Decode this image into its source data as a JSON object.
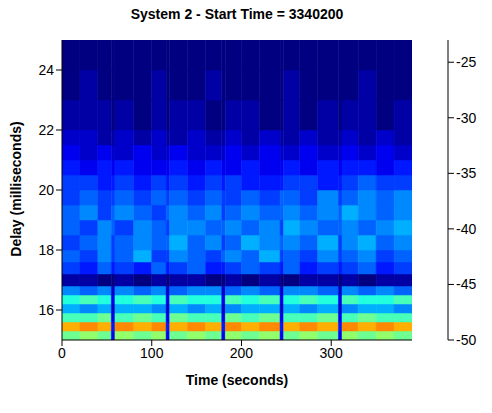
{
  "chart_data": {
    "type": "heatmap",
    "title": "System 2 - Start Time = 3340200",
    "x_label": "Time (seconds)",
    "y_label": "Delay (milliseconds)",
    "xlim": [
      0,
      390
    ],
    "xticks": [
      0,
      100,
      200,
      300
    ],
    "ylim": [
      15,
      25
    ],
    "yticks": [
      16,
      18,
      20,
      22,
      24
    ],
    "x_edges": [
      0,
      20,
      40,
      55,
      59,
      80,
      100,
      116,
      120,
      140,
      160,
      178,
      182,
      200,
      220,
      243,
      247,
      265,
      285,
      308,
      312,
      330,
      350,
      370,
      390
    ],
    "y_edges": [
      15,
      15.3,
      15.6,
      15.9,
      16.2,
      16.5,
      16.8,
      17.2,
      17.6,
      18,
      18.5,
      19,
      19.5,
      20,
      20.5,
      21,
      21.5,
      22,
      23,
      24,
      25
    ],
    "z": [
      [
        -37,
        -36,
        -37,
        -47,
        -36,
        -37,
        -36,
        -47,
        -37,
        -36,
        -37,
        -47,
        -36,
        -37,
        -36,
        -47,
        -37,
        -36,
        -37,
        -47,
        -36,
        -37,
        -36,
        -37
      ],
      [
        -31,
        -30,
        -31,
        -46,
        -30,
        -31,
        -30,
        -46,
        -31,
        -30,
        -31,
        -46,
        -30,
        -31,
        -30,
        -46,
        -31,
        -30,
        -31,
        -46,
        -30,
        -31,
        -30,
        -31
      ],
      [
        -38,
        -38,
        -37,
        -47,
        -38,
        -37,
        -38,
        -47,
        -37,
        -38,
        -38,
        -47,
        -37,
        -38,
        -37,
        -47,
        -38,
        -38,
        -37,
        -47,
        -38,
        -37,
        -38,
        -38
      ],
      [
        -42,
        -43,
        -42,
        -48,
        -42,
        -42,
        -43,
        -48,
        -42,
        -43,
        -42,
        -48,
        -43,
        -42,
        -42,
        -48,
        -42,
        -43,
        -42,
        -48,
        -43,
        -42,
        -42,
        -43
      ],
      [
        -39,
        -38,
        -39,
        -47,
        -39,
        -38,
        -39,
        -47,
        -38,
        -39,
        -39,
        -47,
        -38,
        -39,
        -38,
        -47,
        -39,
        -38,
        -39,
        -47,
        -38,
        -39,
        -39,
        -38
      ],
      [
        -43,
        -44,
        -43,
        -48,
        -43,
        -44,
        -43,
        -48,
        -44,
        -43,
        -43,
        -48,
        -44,
        -43,
        -44,
        -48,
        -43,
        -43,
        -44,
        -48,
        -43,
        -44,
        -43,
        -44
      ],
      [
        -49,
        -49,
        -50,
        -50,
        -49,
        -50,
        -49,
        -50,
        -49,
        -49,
        -50,
        -50,
        -49,
        -50,
        -49,
        -50,
        -50,
        -49,
        -49,
        -50,
        -49,
        -50,
        -49,
        -49
      ],
      [
        -45,
        -46,
        -44,
        -46,
        -45,
        -46,
        -44,
        -46,
        -45,
        -44,
        -46,
        -46,
        -45,
        -44,
        -45,
        -46,
        -44,
        -46,
        -45,
        -46,
        -45,
        -44,
        -46,
        -45
      ],
      [
        -44,
        -45,
        -43,
        -45,
        -44,
        -42,
        -45,
        -45,
        -43,
        -44,
        -45,
        -44,
        -43,
        -44,
        -42,
        -45,
        -44,
        -45,
        -43,
        -45,
        -44,
        -43,
        -45,
        -44
      ],
      [
        -45,
        -44,
        -43,
        -45,
        -44,
        -43,
        -44,
        -44,
        -42,
        -44,
        -43,
        -45,
        -44,
        -42,
        -43,
        -44,
        -43,
        -44,
        -42,
        -45,
        -43,
        -42,
        -44,
        -43
      ],
      [
        -44,
        -45,
        -43,
        -44,
        -45,
        -43,
        -44,
        -45,
        -43,
        -43,
        -44,
        -44,
        -43,
        -44,
        -43,
        -45,
        -42,
        -43,
        -44,
        -44,
        -43,
        -44,
        -43,
        -42
      ],
      [
        -44,
        -43,
        -45,
        -44,
        -43,
        -44,
        -45,
        -44,
        -43,
        -44,
        -43,
        -45,
        -44,
        -43,
        -44,
        -44,
        -43,
        -44,
        -43,
        -44,
        -42,
        -43,
        -44,
        -43
      ],
      [
        -45,
        -44,
        -45,
        -45,
        -44,
        -45,
        -44,
        -45,
        -44,
        -45,
        -44,
        -45,
        -45,
        -44,
        -45,
        -44,
        -44,
        -45,
        -43,
        -45,
        -44,
        -43,
        -44,
        -43
      ],
      [
        -45,
        -45,
        -46,
        -46,
        -45,
        -46,
        -45,
        -46,
        -45,
        -46,
        -45,
        -46,
        -45,
        -46,
        -46,
        -46,
        -45,
        -45,
        -46,
        -46,
        -45,
        -44,
        -45,
        -45
      ],
      [
        -46,
        -47,
        -46,
        -47,
        -46,
        -47,
        -47,
        -47,
        -46,
        -47,
        -46,
        -47,
        -47,
        -46,
        -47,
        -47,
        -46,
        -47,
        -46,
        -47,
        -46,
        -46,
        -47,
        -46
      ],
      [
        -47,
        -48,
        -47,
        -48,
        -48,
        -47,
        -48,
        -48,
        -47,
        -48,
        -48,
        -48,
        -47,
        -48,
        -47,
        -48,
        -48,
        -47,
        -48,
        -48,
        -47,
        -48,
        -47,
        -48
      ],
      [
        -48,
        -48,
        -49,
        -49,
        -48,
        -49,
        -48,
        -49,
        -49,
        -48,
        -49,
        -49,
        -48,
        -49,
        -48,
        -49,
        -49,
        -48,
        -49,
        -49,
        -48,
        -49,
        -48,
        -49
      ],
      [
        -49,
        -49,
        -49,
        -50,
        -49,
        -50,
        -49,
        -50,
        -49,
        -49,
        -50,
        -50,
        -49,
        -49,
        -50,
        -50,
        -49,
        -50,
        -49,
        -50,
        -49,
        -49,
        -50,
        -49
      ],
      [
        -50,
        -49,
        -50,
        -50,
        -50,
        -50,
        -49,
        -50,
        -50,
        -50,
        -49,
        -50,
        -50,
        -50,
        -50,
        -50,
        -49,
        -50,
        -50,
        -50,
        -50,
        -49,
        -50,
        -50
      ],
      [
        -50,
        -50,
        -50,
        -50,
        -50,
        -50,
        -50,
        -50,
        -50,
        -50,
        -50,
        -50,
        -50,
        -50,
        -50,
        -50,
        -50,
        -50,
        -50,
        -50,
        -50,
        -50,
        -50,
        -50
      ]
    ],
    "colorbar": {
      "lim": [
        -50,
        -23
      ],
      "ticks": [
        -50,
        -45,
        -40,
        -35,
        -30,
        -25
      ]
    }
  }
}
